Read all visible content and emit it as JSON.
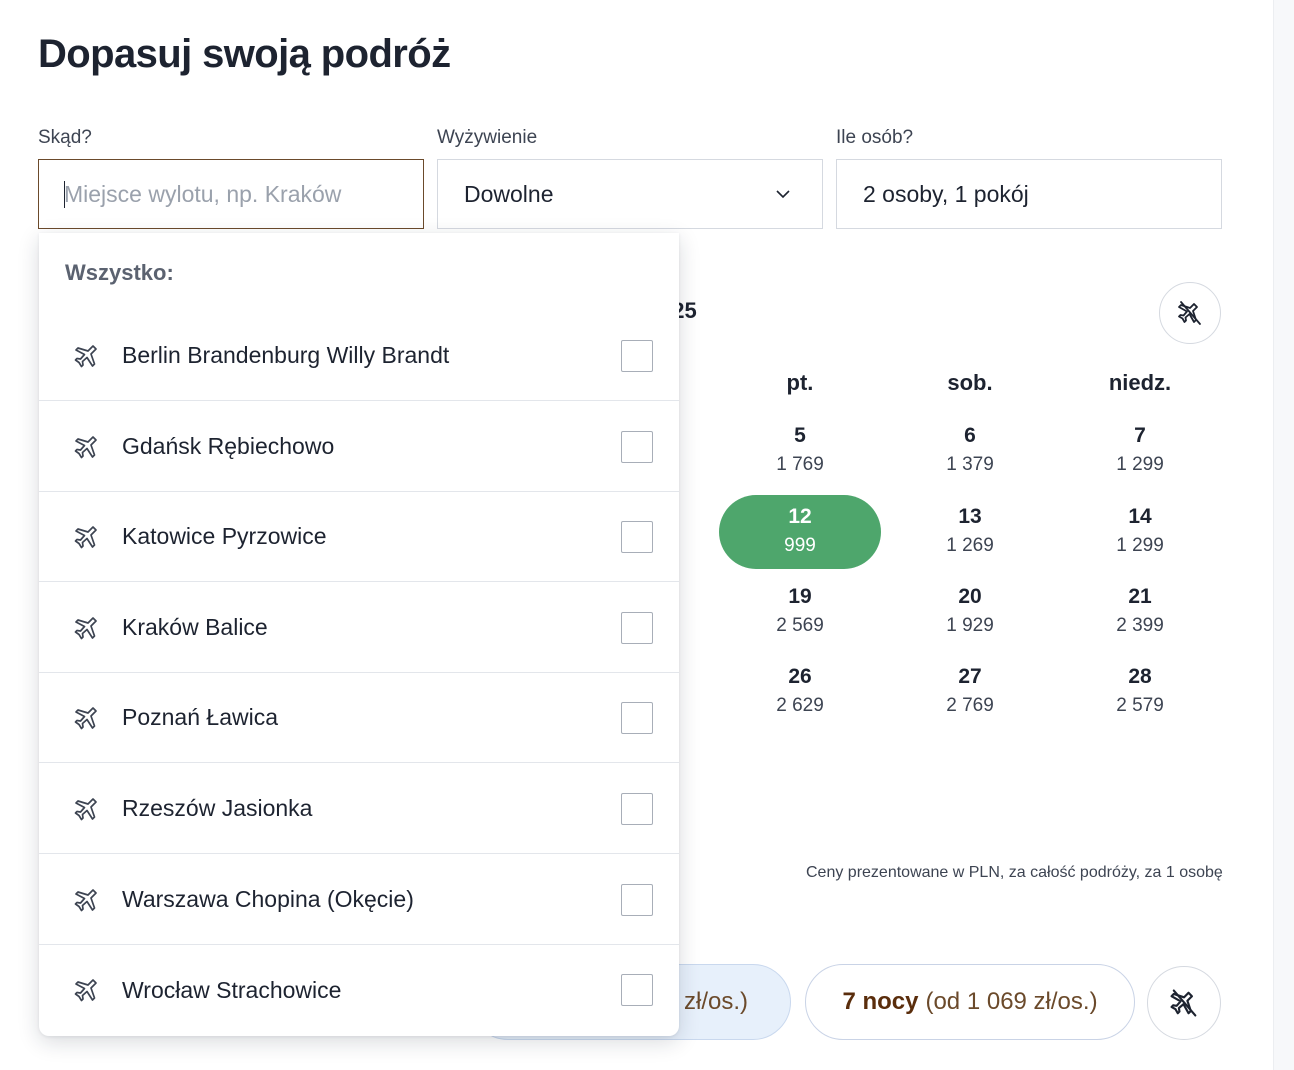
{
  "page": {
    "title": "Dopasuj swoją podróż"
  },
  "fields": {
    "from": {
      "label": "Skąd?",
      "value": "",
      "placeholder": "Miejsce wylotu, np. Kraków"
    },
    "board": {
      "label": "Wyżywienie",
      "value": "Dowolne"
    },
    "people": {
      "label": "Ile osób?",
      "value": "2 osoby, 1 pokój"
    }
  },
  "dropdown": {
    "header": "Wszystko:",
    "items": [
      {
        "label": "Berlin Brandenburg Willy Brandt",
        "checked": false
      },
      {
        "label": "Gdańsk Rębiechowo",
        "checked": false
      },
      {
        "label": "Katowice Pyrzowice",
        "checked": false
      },
      {
        "label": "Kraków Balice",
        "checked": false
      },
      {
        "label": "Poznań Ławica",
        "checked": false
      },
      {
        "label": "Rzeszów Jasionka",
        "checked": false
      },
      {
        "label": "Warszawa Chopina (Okęcie)",
        "checked": false
      },
      {
        "label": "Wrocław Strachowice",
        "checked": false
      }
    ]
  },
  "calendar": {
    "month_fragment": "025",
    "weekdays": [
      "pt.",
      "sob.",
      "niedz."
    ],
    "weeks": [
      [
        {
          "day": "5",
          "price": "1 769"
        },
        {
          "day": "6",
          "price": "1 379"
        },
        {
          "day": "7",
          "price": "1 299"
        }
      ],
      [
        {
          "day": "12",
          "price": "999",
          "selected": true
        },
        {
          "day": "13",
          "price": "1 269"
        },
        {
          "day": "14",
          "price": "1 299"
        }
      ],
      [
        {
          "day": "19",
          "price": "2 569"
        },
        {
          "day": "20",
          "price": "1 929"
        },
        {
          "day": "21",
          "price": "2 399"
        }
      ],
      [
        {
          "day": "26",
          "price": "2 629"
        },
        {
          "day": "27",
          "price": "2 769"
        },
        {
          "day": "28",
          "price": "2 579"
        }
      ]
    ],
    "price_note": "Ceny prezentowane w PLN, za całość podróży, za 1 osobę"
  },
  "nights": {
    "partial_chip": "zł/os.)",
    "seven": {
      "bold": "7 nocy",
      "rest": "(od 1 069 zł/os.)"
    }
  },
  "colors": {
    "accent_green": "#4ea66c",
    "brand_brown": "#6b4a2b"
  },
  "icons": {
    "item_icon": "plane-icon",
    "filter_icon": "plane-off-icon"
  }
}
